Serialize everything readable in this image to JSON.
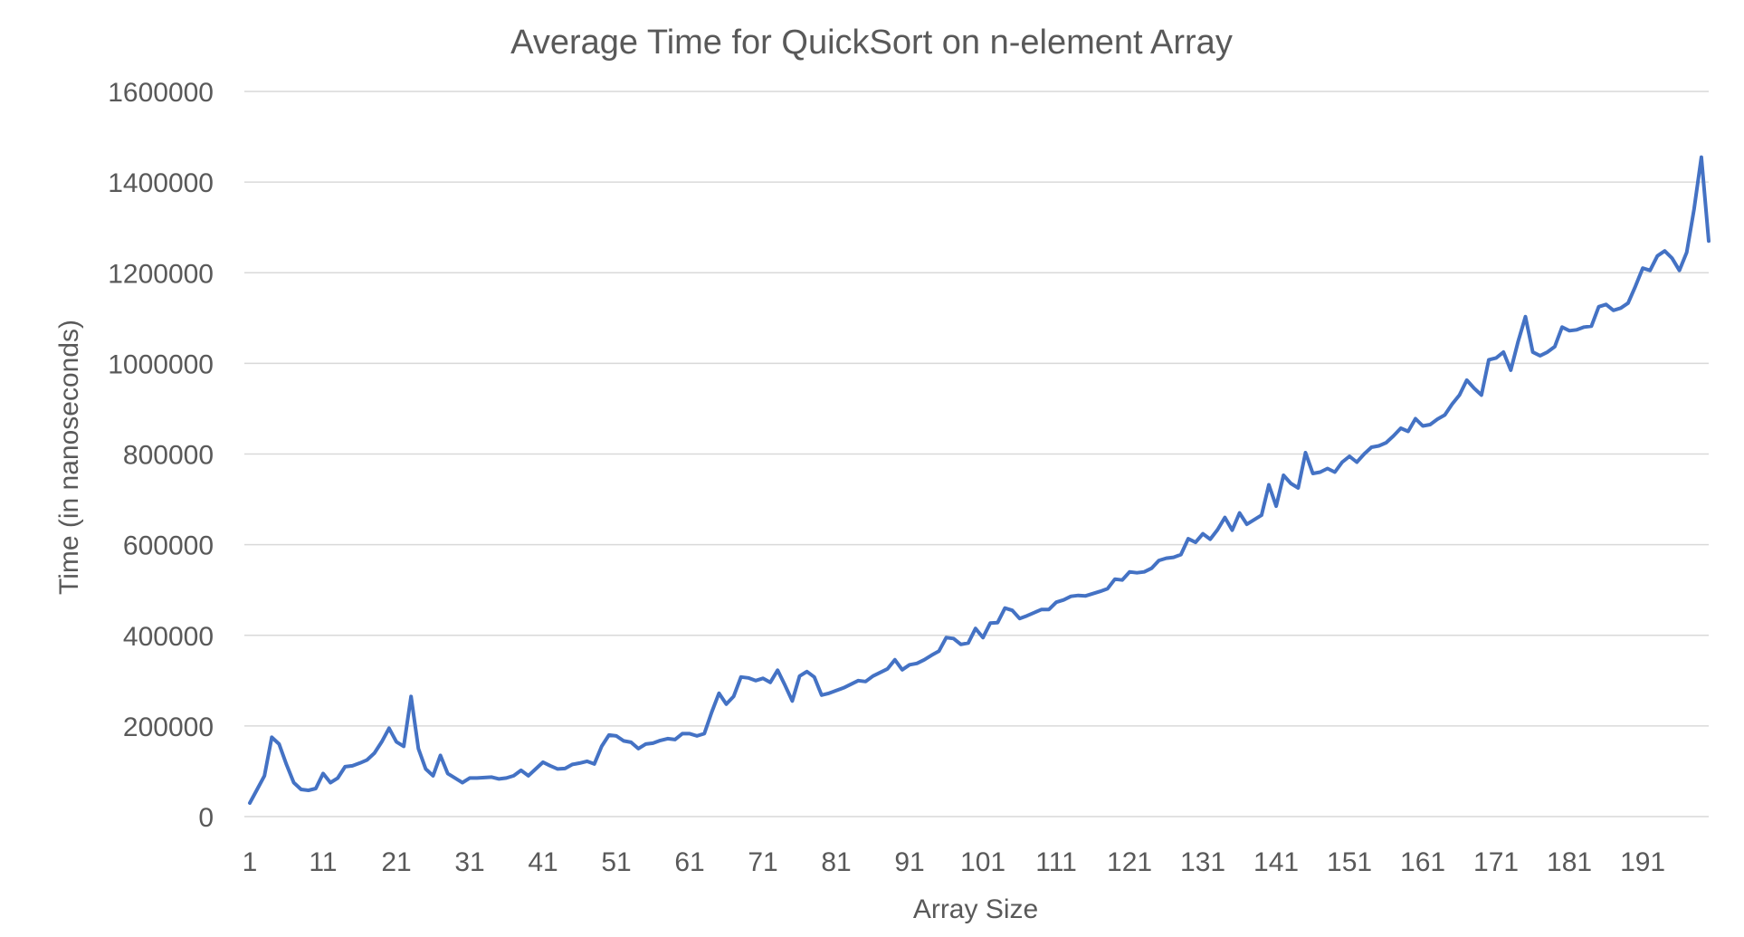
{
  "chart_data": {
    "type": "line",
    "title": "Average Time for QuickSort on n-element Array",
    "xlabel": "Array Size",
    "ylabel": "Time (in nanoseconds)",
    "ylim": [
      0,
      1600000
    ],
    "yticks": [
      0,
      200000,
      400000,
      600000,
      800000,
      1000000,
      1200000,
      1400000,
      1600000
    ],
    "xticks": [
      1,
      11,
      21,
      31,
      41,
      51,
      61,
      71,
      81,
      91,
      101,
      111,
      121,
      131,
      141,
      151,
      161,
      171,
      181,
      191
    ],
    "xlim": [
      1,
      200
    ],
    "grid": true,
    "legend": "none",
    "series_color": "#4472c4",
    "x": [
      1,
      2,
      3,
      4,
      5,
      6,
      7,
      8,
      9,
      10,
      11,
      12,
      13,
      14,
      15,
      16,
      17,
      18,
      19,
      20,
      21,
      22,
      23,
      24,
      25,
      26,
      27,
      28,
      29,
      30,
      31,
      32,
      33,
      34,
      35,
      36,
      37,
      38,
      39,
      40,
      41,
      42,
      43,
      44,
      45,
      46,
      47,
      48,
      49,
      50,
      51,
      52,
      53,
      54,
      55,
      56,
      57,
      58,
      59,
      60,
      61,
      62,
      63,
      64,
      65,
      66,
      67,
      68,
      69,
      70,
      71,
      72,
      73,
      74,
      75,
      76,
      77,
      78,
      79,
      80,
      81,
      82,
      83,
      84,
      85,
      86,
      87,
      88,
      89,
      90,
      91,
      92,
      93,
      94,
      95,
      96,
      97,
      98,
      99,
      100,
      101,
      102,
      103,
      104,
      105,
      106,
      107,
      108,
      109,
      110,
      111,
      112,
      113,
      114,
      115,
      116,
      117,
      118,
      119,
      120,
      121,
      122,
      123,
      124,
      125,
      126,
      127,
      128,
      129,
      130,
      131,
      132,
      133,
      134,
      135,
      136,
      137,
      138,
      139,
      140,
      141,
      142,
      143,
      144,
      145,
      146,
      147,
      148,
      149,
      150,
      151,
      152,
      153,
      154,
      155,
      156,
      157,
      158,
      159,
      160,
      161,
      162,
      163,
      164,
      165,
      166,
      167,
      168,
      169,
      170,
      171,
      172,
      173,
      174,
      175,
      176,
      177,
      178,
      179,
      180,
      181,
      182,
      183,
      184,
      185,
      186,
      187,
      188,
      189,
      190,
      191,
      192,
      193,
      194,
      195,
      196,
      197,
      198,
      199,
      200
    ],
    "series": [
      {
        "values": [
          30000,
          60000,
          90000,
          175000,
          160000,
          115000,
          75000,
          60000,
          58000,
          62000,
          95000,
          75000,
          85000,
          110000,
          112000,
          118000,
          125000,
          140000,
          165000,
          195000,
          165000,
          155000,
          265000,
          150000,
          105000,
          90000,
          135000,
          95000,
          85000,
          75000,
          85000,
          85000,
          86000,
          87000,
          83000,
          85000,
          90000,
          102000,
          90000,
          105000,
          120000,
          112000,
          105000,
          106000,
          115000,
          118000,
          122000,
          116000,
          155000,
          180000,
          178000,
          167000,
          164000,
          150000,
          160000,
          162000,
          168000,
          172000,
          170000,
          183000,
          183000,
          178000,
          183000,
          230000,
          272000,
          248000,
          265000,
          308000,
          306000,
          300000,
          305000,
          296000,
          323000,
          290000,
          255000,
          310000,
          320000,
          308000,
          268000,
          272000,
          278000,
          284000,
          292000,
          300000,
          298000,
          310000,
          318000,
          326000,
          346000,
          324000,
          335000,
          338000,
          346000,
          356000,
          365000,
          395000,
          393000,
          380000,
          383000,
          415000,
          395000,
          427000,
          428000,
          460000,
          455000,
          437000,
          443000,
          450000,
          457000,
          457000,
          473000,
          478000,
          486000,
          488000,
          487000,
          492000,
          497000,
          503000,
          524000,
          522000,
          540000,
          538000,
          540000,
          548000,
          565000,
          570000,
          572000,
          578000,
          613000,
          605000,
          624000,
          612000,
          633000,
          660000,
          632000,
          670000,
          645000,
          655000,
          665000,
          732000,
          685000,
          753000,
          735000,
          725000,
          803000,
          757000,
          760000,
          768000,
          760000,
          782000,
          795000,
          782000,
          800000,
          815000,
          818000,
          825000,
          840000,
          857000,
          850000,
          878000,
          862000,
          865000,
          877000,
          886000,
          910000,
          930000,
          963000,
          945000,
          930000,
          1008000,
          1012000,
          1025000,
          985000,
          1048000,
          1103000,
          1025000,
          1017000,
          1025000,
          1037000,
          1080000,
          1072000,
          1074000,
          1080000,
          1082000,
          1125000,
          1130000,
          1117000,
          1122000,
          1133000,
          1170000,
          1210000,
          1205000,
          1237000,
          1248000,
          1232000,
          1205000,
          1245000,
          1340000,
          1455000,
          1270000
        ]
      }
    ]
  }
}
